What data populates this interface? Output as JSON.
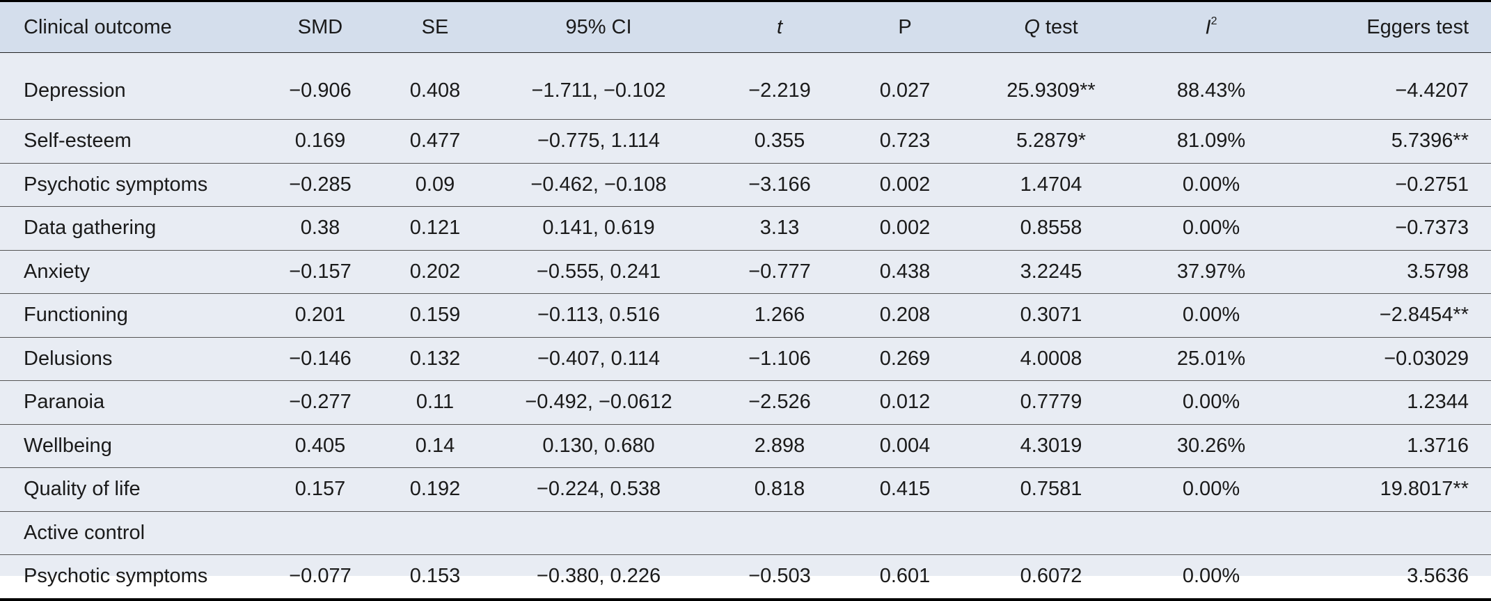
{
  "table": {
    "headers": {
      "outcome": "Clinical outcome",
      "smd": "SMD",
      "se": "SE",
      "ci": "95% CI",
      "t": "t",
      "p": "P",
      "q_italic": "Q",
      "q_rest": " test",
      "i2_base": "I",
      "i2_sup": "2",
      "egger": "Eggers test"
    },
    "rows": [
      {
        "outcome": "Depression",
        "smd": "−0.906",
        "se": "0.408",
        "ci": "−1.711, −0.102",
        "t": "−2.219",
        "p": "0.027",
        "q": "25.9309**",
        "i2": "88.43%",
        "egger": "−4.4207"
      },
      {
        "outcome": "Self-esteem",
        "smd": "0.169",
        "se": "0.477",
        "ci": "−0.775, 1.114",
        "t": "0.355",
        "p": "0.723",
        "q": "5.2879*",
        "i2": "81.09%",
        "egger": "5.7396**"
      },
      {
        "outcome": "Psychotic symptoms",
        "smd": "−0.285",
        "se": "0.09",
        "ci": "−0.462, −0.108",
        "t": "−3.166",
        "p": "0.002",
        "q": "1.4704",
        "i2": "0.00%",
        "egger": "−0.2751"
      },
      {
        "outcome": "Data gathering",
        "smd": "0.38",
        "se": "0.121",
        "ci": "0.141, 0.619",
        "t": "3.13",
        "p": "0.002",
        "q": "0.8558",
        "i2": "0.00%",
        "egger": "−0.7373"
      },
      {
        "outcome": "Anxiety",
        "smd": "−0.157",
        "se": "0.202",
        "ci": "−0.555, 0.241",
        "t": "−0.777",
        "p": "0.438",
        "q": "3.2245",
        "i2": "37.97%",
        "egger": "3.5798"
      },
      {
        "outcome": "Functioning",
        "smd": "0.201",
        "se": "0.159",
        "ci": "−0.113, 0.516",
        "t": "1.266",
        "p": "0.208",
        "q": "0.3071",
        "i2": "0.00%",
        "egger": "−2.8454**"
      },
      {
        "outcome": "Delusions",
        "smd": "−0.146",
        "se": "0.132",
        "ci": "−0.407, 0.114",
        "t": "−1.106",
        "p": "0.269",
        "q": "4.0008",
        "i2": "25.01%",
        "egger": "−0.03029"
      },
      {
        "outcome": "Paranoia",
        "smd": "−0.277",
        "se": "0.11",
        "ci": "−0.492, −0.0612",
        "t": "−2.526",
        "p": "0.012",
        "q": "0.7779",
        "i2": "0.00%",
        "egger": "1.2344"
      },
      {
        "outcome": "Wellbeing",
        "smd": "0.405",
        "se": "0.14",
        "ci": "0.130, 0.680",
        "t": "2.898",
        "p": "0.004",
        "q": "4.3019",
        "i2": "30.26%",
        "egger": "1.3716"
      },
      {
        "outcome": "Quality of life",
        "smd": "0.157",
        "se": "0.192",
        "ci": "−0.224, 0.538",
        "t": "0.818",
        "p": "0.415",
        "q": "0.7581",
        "i2": "0.00%",
        "egger": "19.8017**"
      }
    ],
    "section_label": "Active control",
    "active_rows": [
      {
        "outcome": "Psychotic symptoms",
        "smd": "−0.077",
        "se": "0.153",
        "ci": "−0.380, 0.226",
        "t": "−0.503",
        "p": "0.601",
        "q": "0.6072",
        "i2": "0.00%",
        "egger": "3.5636"
      }
    ]
  }
}
